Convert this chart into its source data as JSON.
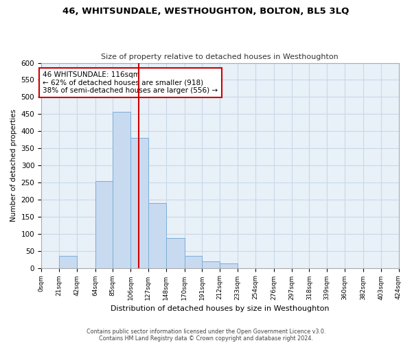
{
  "title": "46, WHITSUNDALE, WESTHOUGHTON, BOLTON, BL5 3LQ",
  "subtitle": "Size of property relative to detached houses in Westhoughton",
  "xlabel": "Distribution of detached houses by size in Westhoughton",
  "ylabel": "Number of detached properties",
  "bar_color": "#c8daf0",
  "bar_edge_color": "#7aaed6",
  "bin_edges": [
    0,
    21,
    42,
    64,
    85,
    106,
    127,
    148,
    170,
    191,
    212,
    233,
    254,
    276,
    297,
    318,
    339,
    360,
    382,
    403,
    424
  ],
  "bar_heights": [
    0,
    35,
    0,
    253,
    457,
    380,
    190,
    88,
    35,
    20,
    13,
    0,
    0,
    0,
    0,
    0,
    0,
    0,
    0,
    0
  ],
  "tick_labels": [
    "0sqm",
    "21sqm",
    "42sqm",
    "64sqm",
    "85sqm",
    "106sqm",
    "127sqm",
    "148sqm",
    "170sqm",
    "191sqm",
    "212sqm",
    "233sqm",
    "254sqm",
    "276sqm",
    "297sqm",
    "318sqm",
    "339sqm",
    "360sqm",
    "382sqm",
    "403sqm",
    "424sqm"
  ],
  "vline_x": 116,
  "vline_color": "#cc0000",
  "annotation_text": "46 WHITSUNDALE: 116sqm\n← 62% of detached houses are smaller (918)\n38% of semi-detached houses are larger (556) →",
  "annotation_box_color": "#ffffff",
  "annotation_box_edge": "#cc0000",
  "ylim": [
    0,
    600
  ],
  "yticks": [
    0,
    50,
    100,
    150,
    200,
    250,
    300,
    350,
    400,
    450,
    500,
    550,
    600
  ],
  "footer1": "Contains HM Land Registry data © Crown copyright and database right 2024.",
  "footer2": "Contains public sector information licensed under the Open Government Licence v3.0.",
  "bg_color": "#e8f0f8",
  "grid_color": "#c8d8e8"
}
